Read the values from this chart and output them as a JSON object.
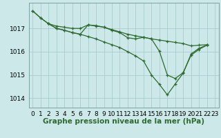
{
  "bg_color": "#cce8e8",
  "grid_color": "#aacccc",
  "line_color": "#2d6a2d",
  "xlabel": "Graphe pression niveau de la mer (hPa)",
  "xlabel_fontsize": 7.5,
  "tick_fontsize": 6.5,
  "ylim": [
    1013.6,
    1018.1
  ],
  "xlim": [
    -0.5,
    23.5
  ],
  "yticks": [
    1014,
    1015,
    1016,
    1017
  ],
  "xticks": [
    0,
    1,
    2,
    3,
    4,
    5,
    6,
    7,
    8,
    9,
    10,
    11,
    12,
    13,
    14,
    15,
    16,
    17,
    18,
    19,
    20,
    21,
    22,
    23
  ],
  "series1": {
    "x": [
      0,
      1,
      2,
      3,
      4,
      5,
      6,
      7,
      8,
      9,
      10,
      11,
      12,
      13,
      14,
      15,
      16,
      17,
      18,
      19,
      20,
      21,
      22
    ],
    "y": [
      1017.75,
      1017.45,
      1017.2,
      1017.1,
      1017.05,
      1017.0,
      1017.0,
      1017.15,
      1017.1,
      1017.05,
      1016.95,
      1016.85,
      1016.75,
      1016.68,
      1016.62,
      1016.55,
      1016.5,
      1016.45,
      1016.4,
      1016.35,
      1016.25,
      1016.28,
      1016.3
    ]
  },
  "series2": {
    "x": [
      2,
      3,
      4,
      5,
      6,
      7,
      8,
      9,
      10,
      11,
      12,
      13,
      14,
      15,
      16,
      17,
      18,
      19,
      20,
      21,
      22
    ],
    "y": [
      1017.2,
      1017.0,
      1016.92,
      1016.82,
      1016.75,
      1017.15,
      1017.12,
      1017.05,
      1016.92,
      1016.82,
      1016.6,
      1016.55,
      1016.62,
      1016.55,
      1016.02,
      1015.0,
      1014.85,
      1015.1,
      1015.85,
      1016.1,
      1016.28
    ]
  },
  "series3": {
    "x": [
      0,
      1,
      2,
      3,
      4,
      5,
      6,
      7,
      8,
      9,
      10,
      11,
      12,
      13,
      14,
      15,
      16,
      17,
      18,
      19,
      20,
      21,
      22
    ],
    "y": [
      1017.75,
      1017.45,
      1017.2,
      1017.0,
      1016.92,
      1016.82,
      1016.75,
      1016.65,
      1016.55,
      1016.42,
      1016.3,
      1016.18,
      1016.0,
      1015.82,
      1015.6,
      1015.0,
      1014.6,
      1014.15,
      1014.62,
      1015.08,
      1015.9,
      1016.15,
      1016.28
    ]
  }
}
